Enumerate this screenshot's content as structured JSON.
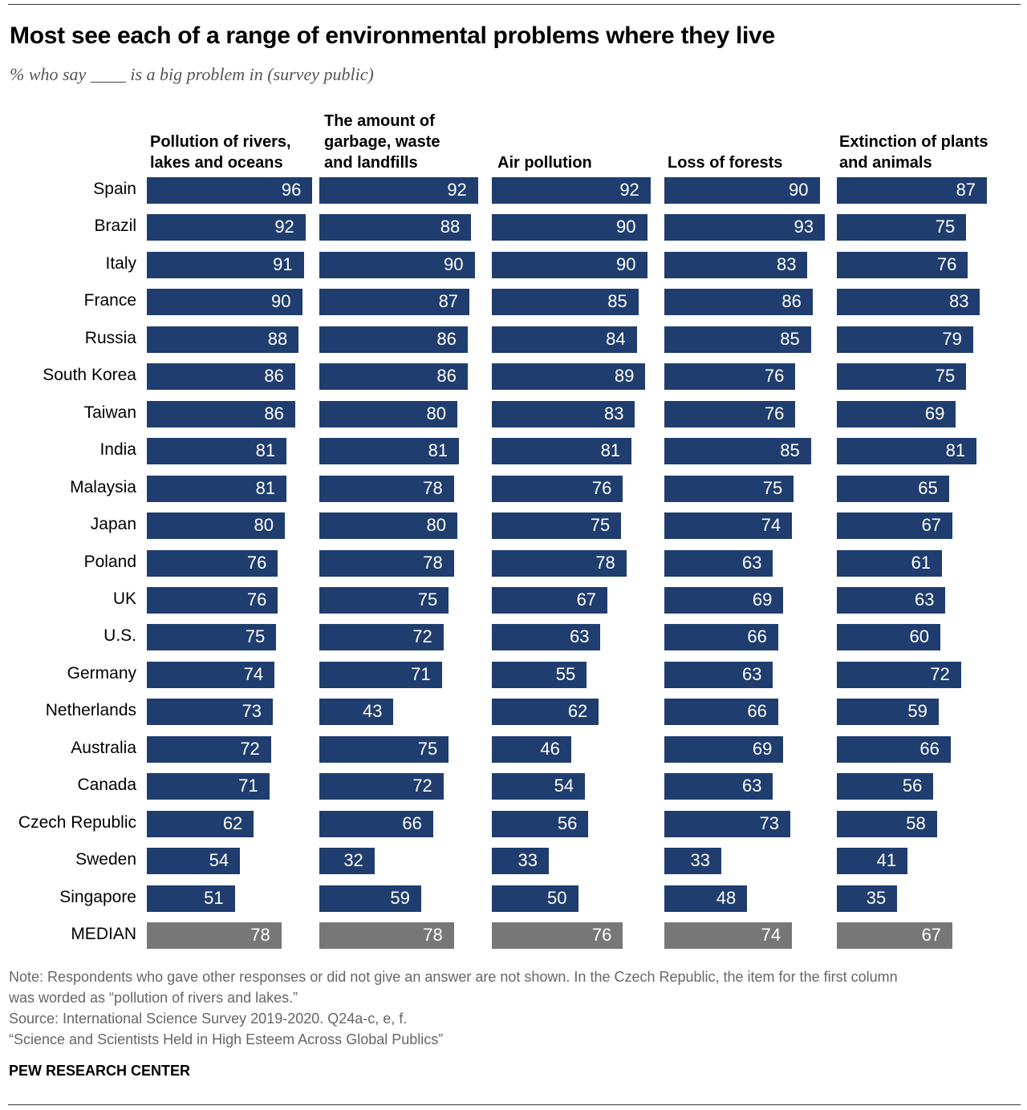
{
  "title": "Most see each of a range of environmental problems where they live",
  "subtitle": "% who say ____ is a big problem in (survey public)",
  "colors": {
    "bar": "#1f3d6e",
    "median": "#777777"
  },
  "chart_data": {
    "type": "bar",
    "orientation": "horizontal",
    "categories": [
      "Spain",
      "Brazil",
      "Italy",
      "France",
      "Russia",
      "South Korea",
      "Taiwan",
      "India",
      "Malaysia",
      "Japan",
      "Poland",
      "UK",
      "U.S.",
      "Germany",
      "Netherlands",
      "Australia",
      "Canada",
      "Czech Republic",
      "Sweden",
      "Singapore",
      "MEDIAN"
    ],
    "series": [
      {
        "name": "Pollution of rivers, lakes and oceans",
        "values": [
          96,
          92,
          91,
          90,
          88,
          86,
          86,
          81,
          81,
          80,
          76,
          76,
          75,
          74,
          73,
          72,
          71,
          62,
          54,
          51,
          78
        ]
      },
      {
        "name": "The amount of garbage, waste and landfills",
        "values": [
          92,
          88,
          90,
          87,
          86,
          86,
          80,
          81,
          78,
          80,
          78,
          75,
          72,
          71,
          43,
          75,
          72,
          66,
          32,
          59,
          78
        ]
      },
      {
        "name": "Air pollution",
        "values": [
          92,
          90,
          90,
          85,
          84,
          89,
          83,
          81,
          76,
          75,
          78,
          67,
          63,
          55,
          62,
          46,
          54,
          56,
          33,
          50,
          76
        ]
      },
      {
        "name": "Loss of forests",
        "values": [
          90,
          93,
          83,
          86,
          85,
          76,
          76,
          85,
          75,
          74,
          63,
          69,
          66,
          63,
          66,
          69,
          63,
          73,
          33,
          48,
          74
        ]
      },
      {
        "name": "Extinction of plants and animals",
        "values": [
          87,
          75,
          76,
          83,
          79,
          75,
          69,
          81,
          65,
          67,
          61,
          63,
          60,
          72,
          59,
          66,
          56,
          58,
          41,
          35,
          67
        ]
      }
    ],
    "xlim": [
      0,
      100
    ],
    "grid": false,
    "legend": "none"
  },
  "notes": [
    "Note: Respondents who gave other responses or did not give an answer are not shown. In the Czech Republic, the item for the first column",
    "was worded as “pollution of rivers and lakes.”",
    "Source: International Science Survey 2019-2020. Q24a-c, e, f.",
    "“Science and Scientists Held in High Esteem Across Global Publics”"
  ],
  "brand": "PEW RESEARCH CENTER"
}
